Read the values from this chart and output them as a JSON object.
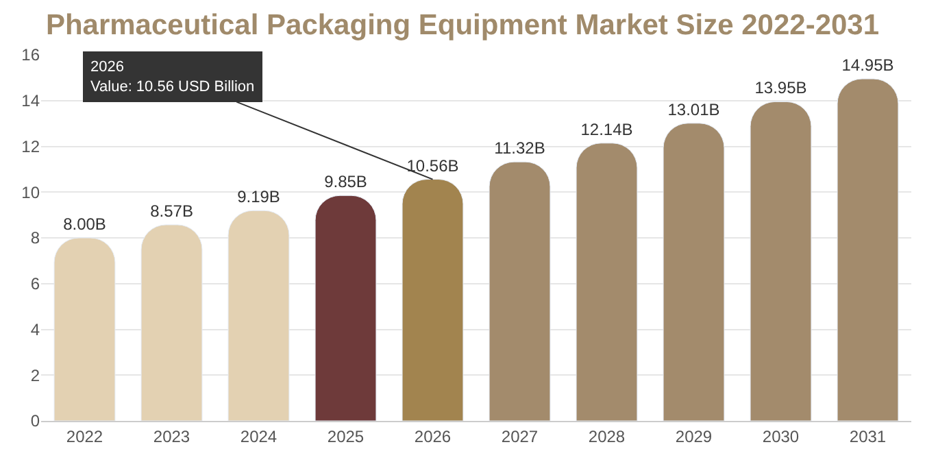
{
  "chart_data": {
    "type": "bar",
    "title": "Pharmaceutical Packaging Equipment Market Size 2022-2031",
    "categories": [
      "2022",
      "2023",
      "2024",
      "2025",
      "2026",
      "2027",
      "2028",
      "2029",
      "2030",
      "2031"
    ],
    "values": [
      8.0,
      8.57,
      9.19,
      9.85,
      10.56,
      11.32,
      12.14,
      13.01,
      13.95,
      14.95
    ],
    "colors": [
      "#e3d1b2",
      "#e3d1b2",
      "#e3d1b2",
      "#6e3a3a",
      "#a2844f",
      "#a38b6c",
      "#a38b6c",
      "#a38b6c",
      "#a38b6c",
      "#a38b6c"
    ],
    "value_labels": [
      "8.00B",
      "8.57B",
      "9.19B",
      "9.85B",
      "10.56B",
      "11.32B",
      "12.14B",
      "13.01B",
      "13.95B",
      "14.95B"
    ],
    "annotations": [
      {
        "text": "2026\nValue: 10.56 USD Billion",
        "x": "2026",
        "y": 10.56
      }
    ],
    "ylim": [
      0,
      16
    ],
    "yticks": [
      0,
      2,
      4,
      6,
      8,
      10,
      12,
      14,
      16
    ],
    "grid": "y",
    "legend": false
  }
}
